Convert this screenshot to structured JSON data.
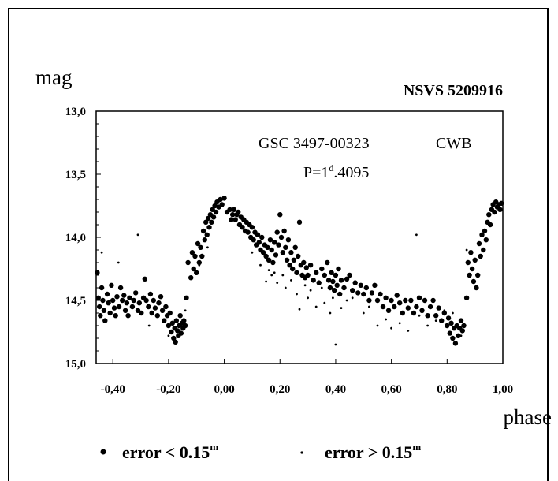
{
  "chart_data": {
    "type": "scatter",
    "title": "NSVS 5209916",
    "annotation_star": "GSC 3497-00323",
    "annotation_type": "CWB",
    "annotation_period_prefix": "P=1",
    "annotation_period_sup": "d",
    "annotation_period_suffix": ".4095",
    "xlabel": "phase",
    "ylabel": "mag",
    "xlim": [
      -0.46,
      1.0
    ],
    "ylim": [
      15.0,
      13.0
    ],
    "y_inverted": true,
    "x_ticks": [
      "-0,40",
      "-0,20",
      "0,00",
      "0,20",
      "0,40",
      "0,60",
      "0,80",
      "1,00"
    ],
    "x_tick_values": [
      -0.4,
      -0.2,
      0.0,
      0.2,
      0.4,
      0.6,
      0.8,
      1.0
    ],
    "y_ticks": [
      "13,0",
      "13,5",
      "14,0",
      "14,5",
      "15,0"
    ],
    "y_tick_values": [
      13.0,
      13.5,
      14.0,
      14.5,
      15.0
    ],
    "grid": false,
    "legend": [
      {
        "marker": "large-dot",
        "text": "error < 0.15",
        "sup": "m"
      },
      {
        "marker": "small-dot",
        "text": "error > 0.15",
        "sup": "m"
      }
    ],
    "series": [
      {
        "marker": "large-dot",
        "points": [
          [
            -0.456,
            14.28
          ],
          [
            -0.452,
            14.48
          ],
          [
            -0.448,
            14.55
          ],
          [
            -0.445,
            14.62
          ],
          [
            -0.44,
            14.4
          ],
          [
            -0.436,
            14.5
          ],
          [
            -0.432,
            14.58
          ],
          [
            -0.428,
            14.66
          ],
          [
            -0.42,
            14.45
          ],
          [
            -0.416,
            14.52
          ],
          [
            -0.41,
            14.6
          ],
          [
            -0.405,
            14.38
          ],
          [
            -0.4,
            14.5
          ],
          [
            -0.395,
            14.56
          ],
          [
            -0.39,
            14.62
          ],
          [
            -0.385,
            14.47
          ],
          [
            -0.378,
            14.55
          ],
          [
            -0.372,
            14.4
          ],
          [
            -0.366,
            14.5
          ],
          [
            -0.36,
            14.46
          ],
          [
            -0.355,
            14.58
          ],
          [
            -0.35,
            14.52
          ],
          [
            -0.345,
            14.62
          ],
          [
            -0.34,
            14.48
          ],
          [
            -0.33,
            14.55
          ],
          [
            -0.325,
            14.5
          ],
          [
            -0.318,
            14.44
          ],
          [
            -0.31,
            14.58
          ],
          [
            -0.305,
            14.52
          ],
          [
            -0.298,
            14.6
          ],
          [
            -0.29,
            14.48
          ],
          [
            -0.285,
            14.33
          ],
          [
            -0.28,
            14.5
          ],
          [
            -0.272,
            14.55
          ],
          [
            -0.265,
            14.45
          ],
          [
            -0.26,
            14.6
          ],
          [
            -0.254,
            14.5
          ],
          [
            -0.248,
            14.56
          ],
          [
            -0.24,
            14.62
          ],
          [
            -0.235,
            14.52
          ],
          [
            -0.228,
            14.47
          ],
          [
            -0.222,
            14.58
          ],
          [
            -0.216,
            14.66
          ],
          [
            -0.21,
            14.55
          ],
          [
            -0.205,
            14.62
          ],
          [
            -0.2,
            14.7
          ],
          [
            -0.195,
            14.6
          ],
          [
            -0.19,
            14.75
          ],
          [
            -0.186,
            14.68
          ],
          [
            -0.182,
            14.8
          ],
          [
            -0.178,
            14.72
          ],
          [
            -0.175,
            14.83
          ],
          [
            -0.172,
            14.66
          ],
          [
            -0.168,
            14.74
          ],
          [
            -0.165,
            14.78
          ],
          [
            -0.162,
            14.7
          ],
          [
            -0.158,
            14.62
          ],
          [
            -0.155,
            14.76
          ],
          [
            -0.152,
            14.68
          ],
          [
            -0.148,
            14.72
          ],
          [
            -0.145,
            14.66
          ],
          [
            -0.14,
            14.7
          ],
          [
            -0.136,
            14.48
          ],
          [
            -0.13,
            14.2
          ],
          [
            -0.12,
            14.32
          ],
          [
            -0.115,
            14.12
          ],
          [
            -0.11,
            14.25
          ],
          [
            -0.105,
            14.15
          ],
          [
            -0.1,
            14.28
          ],
          [
            -0.095,
            14.05
          ],
          [
            -0.09,
            14.2
          ],
          [
            -0.085,
            14.08
          ],
          [
            -0.08,
            14.15
          ],
          [
            -0.075,
            13.95
          ],
          [
            -0.07,
            14.02
          ],
          [
            -0.066,
            13.88
          ],
          [
            -0.062,
            13.98
          ],
          [
            -0.058,
            13.85
          ],
          [
            -0.054,
            13.92
          ],
          [
            -0.05,
            13.82
          ],
          [
            -0.046,
            13.88
          ],
          [
            -0.042,
            13.78
          ],
          [
            -0.038,
            13.84
          ],
          [
            -0.034,
            13.75
          ],
          [
            -0.03,
            13.8
          ],
          [
            -0.026,
            13.72
          ],
          [
            -0.02,
            13.76
          ],
          [
            -0.014,
            13.7
          ],
          [
            -0.008,
            13.74
          ],
          [
            0.0,
            13.69
          ],
          [
            0.01,
            13.8
          ],
          [
            0.02,
            13.78
          ],
          [
            0.025,
            13.86
          ],
          [
            0.03,
            13.82
          ],
          [
            0.035,
            13.78
          ],
          [
            0.04,
            13.86
          ],
          [
            0.045,
            13.82
          ],
          [
            0.05,
            13.8
          ],
          [
            0.055,
            13.9
          ],
          [
            0.06,
            13.84
          ],
          [
            0.065,
            13.92
          ],
          [
            0.07,
            13.86
          ],
          [
            0.075,
            13.95
          ],
          [
            0.08,
            13.88
          ],
          [
            0.085,
            13.96
          ],
          [
            0.09,
            13.9
          ],
          [
            0.095,
            14.0
          ],
          [
            0.1,
            13.92
          ],
          [
            0.105,
            14.02
          ],
          [
            0.11,
            13.96
          ],
          [
            0.115,
            14.06
          ],
          [
            0.12,
            13.98
          ],
          [
            0.125,
            14.04
          ],
          [
            0.13,
            14.1
          ],
          [
            0.135,
            14.0
          ],
          [
            0.14,
            14.12
          ],
          [
            0.145,
            14.06
          ],
          [
            0.15,
            14.15
          ],
          [
            0.155,
            14.08
          ],
          [
            0.16,
            14.18
          ],
          [
            0.165,
            14.02
          ],
          [
            0.17,
            14.1
          ],
          [
            0.175,
            14.2
          ],
          [
            0.18,
            14.04
          ],
          [
            0.185,
            14.14
          ],
          [
            0.19,
            13.96
          ],
          [
            0.195,
            14.06
          ],
          [
            0.2,
            13.82
          ],
          [
            0.205,
            14.0
          ],
          [
            0.21,
            14.12
          ],
          [
            0.215,
            13.95
          ],
          [
            0.22,
            14.08
          ],
          [
            0.225,
            14.18
          ],
          [
            0.23,
            14.02
          ],
          [
            0.235,
            14.22
          ],
          [
            0.24,
            14.12
          ],
          [
            0.245,
            14.25
          ],
          [
            0.25,
            14.18
          ],
          [
            0.255,
            14.08
          ],
          [
            0.26,
            14.28
          ],
          [
            0.265,
            14.15
          ],
          [
            0.27,
            13.88
          ],
          [
            0.275,
            14.22
          ],
          [
            0.28,
            14.3
          ],
          [
            0.285,
            14.2
          ],
          [
            0.29,
            14.32
          ],
          [
            0.295,
            14.24
          ],
          [
            0.3,
            14.3
          ],
          [
            0.31,
            14.22
          ],
          [
            0.32,
            14.34
          ],
          [
            0.33,
            14.28
          ],
          [
            0.34,
            14.36
          ],
          [
            0.35,
            14.25
          ],
          [
            0.36,
            14.3
          ],
          [
            0.37,
            14.2
          ],
          [
            0.375,
            14.34
          ],
          [
            0.38,
            14.4
          ],
          [
            0.385,
            14.28
          ],
          [
            0.39,
            14.35
          ],
          [
            0.395,
            14.42
          ],
          [
            0.4,
            14.3
          ],
          [
            0.405,
            14.38
          ],
          [
            0.41,
            14.25
          ],
          [
            0.415,
            14.45
          ],
          [
            0.42,
            14.34
          ],
          [
            0.43,
            14.4
          ],
          [
            0.44,
            14.33
          ],
          [
            0.45,
            14.3
          ],
          [
            0.46,
            14.42
          ],
          [
            0.47,
            14.36
          ],
          [
            0.48,
            14.44
          ],
          [
            0.49,
            14.38
          ],
          [
            0.5,
            14.45
          ],
          [
            0.51,
            14.4
          ],
          [
            0.52,
            14.5
          ],
          [
            0.53,
            14.44
          ],
          [
            0.54,
            14.38
          ],
          [
            0.55,
            14.5
          ],
          [
            0.56,
            14.45
          ],
          [
            0.57,
            14.55
          ],
          [
            0.58,
            14.48
          ],
          [
            0.59,
            14.58
          ],
          [
            0.6,
            14.5
          ],
          [
            0.61,
            14.55
          ],
          [
            0.62,
            14.46
          ],
          [
            0.63,
            14.52
          ],
          [
            0.64,
            14.6
          ],
          [
            0.65,
            14.5
          ],
          [
            0.66,
            14.56
          ],
          [
            0.67,
            14.5
          ],
          [
            0.68,
            14.6
          ],
          [
            0.69,
            14.55
          ],
          [
            0.7,
            14.48
          ],
          [
            0.71,
            14.58
          ],
          [
            0.72,
            14.5
          ],
          [
            0.73,
            14.62
          ],
          [
            0.74,
            14.55
          ],
          [
            0.75,
            14.5
          ],
          [
            0.76,
            14.62
          ],
          [
            0.77,
            14.56
          ],
          [
            0.78,
            14.66
          ],
          [
            0.79,
            14.6
          ],
          [
            0.8,
            14.7
          ],
          [
            0.805,
            14.64
          ],
          [
            0.81,
            14.76
          ],
          [
            0.815,
            14.68
          ],
          [
            0.82,
            14.8
          ],
          [
            0.825,
            14.72
          ],
          [
            0.83,
            14.84
          ],
          [
            0.835,
            14.7
          ],
          [
            0.84,
            14.78
          ],
          [
            0.845,
            14.72
          ],
          [
            0.85,
            14.66
          ],
          [
            0.855,
            14.74
          ],
          [
            0.86,
            14.7
          ],
          [
            0.87,
            14.48
          ],
          [
            0.875,
            14.2
          ],
          [
            0.88,
            14.3
          ],
          [
            0.885,
            14.12
          ],
          [
            0.89,
            14.25
          ],
          [
            0.895,
            14.35
          ],
          [
            0.9,
            14.18
          ],
          [
            0.905,
            14.4
          ],
          [
            0.91,
            14.3
          ],
          [
            0.915,
            14.05
          ],
          [
            0.92,
            14.15
          ],
          [
            0.925,
            13.98
          ],
          [
            0.93,
            14.1
          ],
          [
            0.935,
            13.95
          ],
          [
            0.94,
            14.02
          ],
          [
            0.945,
            13.88
          ],
          [
            0.95,
            13.82
          ],
          [
            0.955,
            13.9
          ],
          [
            0.96,
            13.78
          ],
          [
            0.965,
            13.74
          ],
          [
            0.97,
            13.8
          ],
          [
            0.975,
            13.72
          ],
          [
            0.98,
            13.76
          ],
          [
            0.985,
            13.74
          ],
          [
            0.99,
            13.78
          ],
          [
            0.995,
            13.73
          ]
        ]
      },
      {
        "marker": "small-dot",
        "points": [
          [
            -0.44,
            14.12
          ],
          [
            -0.41,
            14.5
          ],
          [
            -0.38,
            14.2
          ],
          [
            -0.33,
            14.55
          ],
          [
            -0.31,
            13.98
          ],
          [
            -0.27,
            14.7
          ],
          [
            -0.24,
            14.52
          ],
          [
            -0.2,
            14.78
          ],
          [
            -0.14,
            14.58
          ],
          [
            -0.09,
            14.22
          ],
          [
            -0.06,
            14.08
          ],
          [
            0.1,
            14.12
          ],
          [
            0.13,
            14.22
          ],
          [
            0.15,
            14.35
          ],
          [
            0.16,
            14.26
          ],
          [
            0.17,
            14.3
          ],
          [
            0.18,
            14.28
          ],
          [
            0.19,
            14.36
          ],
          [
            0.21,
            14.3
          ],
          [
            0.22,
            14.4
          ],
          [
            0.24,
            14.34
          ],
          [
            0.26,
            14.45
          ],
          [
            0.27,
            14.57
          ],
          [
            0.29,
            14.38
          ],
          [
            0.3,
            14.48
          ],
          [
            0.31,
            14.42
          ],
          [
            0.33,
            14.55
          ],
          [
            0.35,
            14.4
          ],
          [
            0.36,
            14.52
          ],
          [
            0.38,
            14.6
          ],
          [
            0.39,
            14.48
          ],
          [
            0.4,
            14.85
          ],
          [
            0.42,
            14.56
          ],
          [
            0.44,
            14.5
          ],
          [
            0.46,
            14.48
          ],
          [
            0.5,
            14.6
          ],
          [
            0.52,
            14.55
          ],
          [
            0.55,
            14.7
          ],
          [
            0.58,
            14.65
          ],
          [
            0.6,
            14.72
          ],
          [
            0.63,
            14.68
          ],
          [
            0.66,
            14.74
          ],
          [
            0.69,
            13.98
          ],
          [
            0.7,
            14.62
          ],
          [
            0.73,
            14.7
          ],
          [
            0.76,
            14.66
          ],
          [
            0.79,
            14.58
          ],
          [
            0.82,
            14.6
          ],
          [
            0.85,
            14.78
          ],
          [
            0.87,
            14.1
          ]
        ]
      }
    ]
  }
}
